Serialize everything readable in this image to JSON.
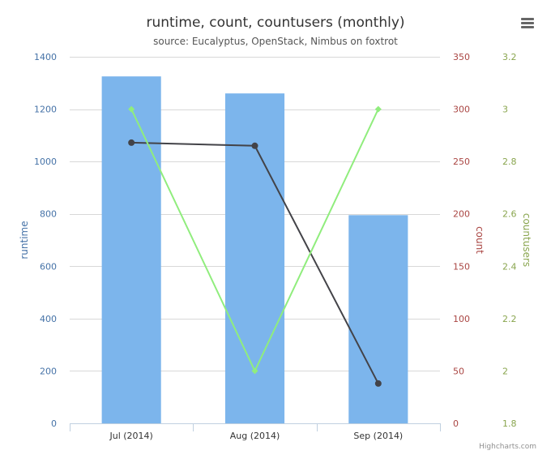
{
  "chart_data": {
    "type": "bar+line",
    "title": "runtime, count, countusers (monthly)",
    "subtitle": "source: Eucalyptus, OpenStack, Nimbus on foxtrot",
    "categories": [
      "Jul (2014)",
      "Aug (2014)",
      "Sep (2014)"
    ],
    "series": [
      {
        "name": "runtime",
        "type": "bar",
        "axis": "runtime",
        "values": [
          1325,
          1260,
          795
        ],
        "color": "#7cb5ec"
      },
      {
        "name": "count",
        "type": "line",
        "axis": "count",
        "values": [
          268,
          265,
          38
        ],
        "color": "#434348"
      },
      {
        "name": "countusers",
        "type": "line",
        "axis": "countusers",
        "values": [
          3,
          2,
          3
        ],
        "color": "#90ed7d"
      }
    ],
    "axes": {
      "runtime": {
        "label": "runtime",
        "position": "left",
        "ylim": [
          0,
          1400
        ],
        "ticks": [
          0,
          200,
          400,
          600,
          800,
          1000,
          1200,
          1400
        ],
        "color": "#4572a7"
      },
      "count": {
        "label": "count",
        "position": "right",
        "ylim": [
          0,
          350
        ],
        "ticks": [
          0,
          50,
          100,
          150,
          200,
          250,
          300,
          350
        ],
        "color": "#aa4643"
      },
      "countusers": {
        "label": "countusers",
        "position": "right",
        "ylim": [
          1.8,
          3.2
        ],
        "ticks": [
          "1.8",
          "2",
          "2.2",
          "2.4",
          "2.6",
          "2.8",
          "3",
          "3.2"
        ],
        "color": "#89a54e"
      }
    },
    "grid": true,
    "legend": "none"
  },
  "credits": "Highcharts.com",
  "menu_icon": "hamburger-menu-icon"
}
